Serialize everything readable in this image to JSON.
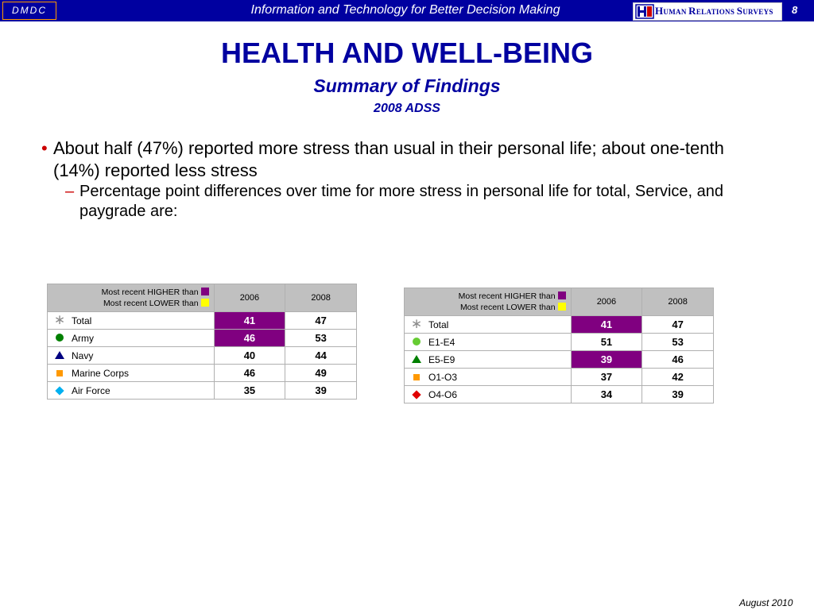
{
  "header": {
    "org": "DMDC",
    "tagline": "Information and Technology for Better Decision Making",
    "logo_text_a": "H",
    "logo_text_b": "UMAN ",
    "logo_text_c": "R",
    "logo_text_d": "ELATIONS ",
    "logo_text_e": "S",
    "logo_text_f": "URVEYS",
    "page_number": "8"
  },
  "title": "HEALTH AND WELL-BEING",
  "subtitle": "Summary of Findings",
  "subtitle2": "2008 ADSS",
  "bullets": {
    "main": "About half (47%) reported more stress than usual in their personal life; about one-tenth (14%) reported less stress",
    "sub": "Percentage point differences over time for more stress in personal life for total, Service, and paygrade are:"
  },
  "legend": {
    "higher": "Most recent HIGHER than",
    "lower": "Most recent LOWER than",
    "higher_color": "#800080",
    "lower_color": "#ffff00"
  },
  "years": [
    "2006",
    "2008"
  ],
  "service_table": {
    "rows": [
      {
        "label": "Total",
        "icon": "asterisk-icon",
        "v2006": "41",
        "v2008": "47",
        "hi2006": true
      },
      {
        "label": "Army",
        "icon": "green-circle-icon",
        "v2006": "46",
        "v2008": "53",
        "hi2006": true
      },
      {
        "label": "Navy",
        "icon": "navy-triangle-icon",
        "v2006": "40",
        "v2008": "44",
        "hi2006": false
      },
      {
        "label": "Marine Corps",
        "icon": "orange-square-icon",
        "v2006": "46",
        "v2008": "49",
        "hi2006": false
      },
      {
        "label": "Air Force",
        "icon": "cyan-diamond-icon",
        "v2006": "35",
        "v2008": "39",
        "hi2006": false
      }
    ]
  },
  "paygrade_table": {
    "rows": [
      {
        "label": "Total",
        "icon": "asterisk-icon",
        "v2006": "41",
        "v2008": "47",
        "hi2006": true
      },
      {
        "label": "E1-E4",
        "icon": "lime-circle-icon",
        "v2006": "51",
        "v2008": "53",
        "hi2006": false
      },
      {
        "label": "E5-E9",
        "icon": "green-triangle-icon",
        "v2006": "39",
        "v2008": "46",
        "hi2006": true
      },
      {
        "label": "O1-O3",
        "icon": "orange-square-icon",
        "v2006": "37",
        "v2008": "42",
        "hi2006": false
      },
      {
        "label": "O4-O6",
        "icon": "red-diamond-icon",
        "v2006": "34",
        "v2008": "39",
        "hi2006": false
      }
    ]
  },
  "footer": "August 2010"
}
